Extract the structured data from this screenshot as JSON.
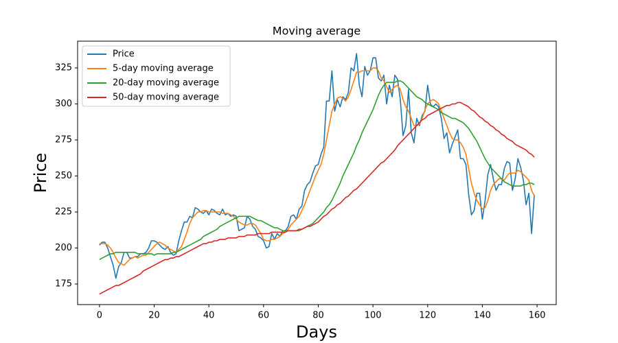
{
  "chart_data": {
    "type": "line",
    "title": "Moving average",
    "x_label": "Days",
    "y_label": "Price",
    "xlim": [
      -8,
      167
    ],
    "ylim": [
      160.7,
      343.6
    ],
    "xticks": [
      0,
      20,
      40,
      60,
      80,
      100,
      120,
      140,
      160
    ],
    "yticks": [
      175,
      200,
      225,
      250,
      275,
      300,
      325
    ],
    "legend": "upper left",
    "grid": false,
    "x": [
      0,
      1,
      2,
      3,
      4,
      5,
      6,
      7,
      8,
      9,
      10,
      11,
      12,
      13,
      14,
      15,
      16,
      17,
      18,
      19,
      20,
      21,
      22,
      23,
      24,
      25,
      26,
      27,
      28,
      29,
      30,
      31,
      32,
      33,
      34,
      35,
      36,
      37,
      38,
      39,
      40,
      41,
      42,
      43,
      44,
      45,
      46,
      47,
      48,
      49,
      50,
      51,
      52,
      53,
      54,
      55,
      56,
      57,
      58,
      59,
      60,
      61,
      62,
      63,
      64,
      65,
      66,
      67,
      68,
      69,
      70,
      71,
      72,
      73,
      74,
      75,
      76,
      77,
      78,
      79,
      80,
      81,
      82,
      83,
      84,
      85,
      86,
      87,
      88,
      89,
      90,
      91,
      92,
      93,
      94,
      95,
      96,
      97,
      98,
      99,
      100,
      101,
      102,
      103,
      104,
      105,
      106,
      107,
      108,
      109,
      110,
      111,
      112,
      113,
      114,
      115,
      116,
      117,
      118,
      119,
      120,
      121,
      122,
      123,
      124,
      125,
      126,
      127,
      128,
      129,
      130,
      131,
      132,
      133,
      134,
      135,
      136,
      137,
      138,
      139,
      140,
      141,
      142,
      143,
      144,
      145,
      146,
      147,
      148,
      149,
      150,
      151,
      152,
      153,
      154,
      155,
      156,
      157,
      158,
      159
    ],
    "series": [
      {
        "name": "Price",
        "color": "#1f77b4",
        "values": [
          202,
          204,
          204,
          200,
          194,
          188,
          179,
          187,
          190,
          197,
          197,
          193,
          193,
          194,
          194,
          196,
          196,
          197,
          200,
          205,
          205,
          204,
          202,
          200,
          199,
          201,
          197,
          195,
          196,
          205,
          212,
          218,
          218,
          222,
          221,
          228,
          227,
          225,
          224,
          226,
          223,
          227,
          226,
          224,
          223,
          227,
          223,
          224,
          222,
          223,
          222,
          212,
          213,
          214,
          222,
          220,
          215,
          213,
          208,
          207,
          205,
          200,
          201,
          210,
          206,
          210,
          208,
          212,
          212,
          215,
          222,
          223,
          220,
          227,
          229,
          240,
          244,
          246,
          252,
          257,
          258,
          265,
          270,
          302,
          302,
          323,
          295,
          303,
          298,
          305,
          303,
          308,
          325,
          323,
          335,
          313,
          305,
          326,
          320,
          323,
          332,
          332,
          318,
          316,
          320,
          300,
          313,
          305,
          320,
          317,
          303,
          278,
          285,
          310,
          280,
          273,
          290,
          285,
          292,
          295,
          313,
          300,
          298,
          300,
          298,
          290,
          276,
          280,
          266,
          272,
          277,
          282,
          262,
          262,
          258,
          237,
          223,
          226,
          238,
          238,
          220,
          233,
          251,
          258,
          248,
          240,
          244,
          244,
          255,
          260,
          259,
          240,
          248,
          262,
          256,
          247,
          230,
          238,
          210,
          237
        ]
      },
      {
        "name": "5-day moving average",
        "color": "#ff7f0e",
        "values": [
          203,
          203,
          203,
          202,
          200,
          197,
          193,
          190,
          189,
          188,
          190,
          192,
          193,
          194,
          193,
          194,
          195,
          195,
          197,
          199,
          201,
          203,
          204,
          203,
          202,
          200,
          199,
          198,
          197,
          199,
          201,
          206,
          211,
          217,
          221,
          223,
          225,
          225,
          226,
          226,
          225,
          225,
          225,
          225,
          225,
          224,
          224,
          224,
          223,
          222,
          220,
          218,
          217,
          216,
          216,
          217,
          217,
          216,
          213,
          210,
          206,
          205,
          205,
          206,
          206,
          207,
          208,
          210,
          211,
          213,
          216,
          218,
          220,
          222,
          226,
          230,
          235,
          240,
          245,
          250,
          254,
          258,
          265,
          275,
          285,
          295,
          300,
          304,
          305,
          304,
          302,
          305,
          310,
          316,
          322,
          322,
          323,
          323,
          323,
          323,
          325,
          325,
          323,
          318,
          316,
          312,
          308,
          310,
          312,
          313,
          310,
          303,
          298,
          295,
          290,
          285,
          285,
          286,
          290,
          296,
          300,
          302,
          303,
          302,
          300,
          295,
          290,
          285,
          280,
          276,
          275,
          275,
          273,
          270,
          265,
          255,
          245,
          238,
          233,
          230,
          227,
          228,
          233,
          240,
          244,
          246,
          248,
          248,
          247,
          250,
          252,
          252,
          252,
          254,
          253,
          251,
          249,
          247,
          240,
          236
        ]
      },
      {
        "name": "20-day moving average",
        "color": "#2ca02c",
        "values": [
          192,
          193,
          194,
          195,
          196,
          196,
          197,
          197,
          197,
          197,
          197,
          197,
          197,
          197,
          196,
          196,
          196,
          196,
          196,
          196,
          195,
          196,
          196,
          196,
          196,
          196,
          196,
          197,
          197,
          198,
          199,
          200,
          201,
          202,
          203,
          204,
          205,
          206,
          208,
          209,
          210,
          211,
          212,
          213,
          215,
          216,
          217,
          218,
          219,
          220,
          221,
          222,
          222,
          222,
          222,
          222,
          221,
          220,
          219,
          219,
          218,
          217,
          216,
          215,
          214,
          214,
          213,
          212,
          212,
          212,
          212,
          212,
          212,
          212,
          213,
          214,
          215,
          216,
          217,
          219,
          221,
          223,
          225,
          228,
          230,
          233,
          237,
          241,
          245,
          250,
          254,
          258,
          262,
          266,
          271,
          275,
          280,
          284,
          288,
          292,
          296,
          301,
          306,
          310,
          313,
          315,
          315,
          315,
          315,
          316,
          316,
          315,
          313,
          311,
          309,
          307,
          305,
          304,
          303,
          301,
          300,
          299,
          298,
          297,
          296,
          294,
          293,
          292,
          291,
          290,
          290,
          289,
          288,
          287,
          285,
          283,
          280,
          277,
          274,
          270,
          266,
          262,
          259,
          256,
          254,
          252,
          250,
          248,
          246,
          245,
          244,
          243,
          243,
          243,
          243,
          244,
          244,
          245,
          245,
          244
        ]
      },
      {
        "name": "50-day moving average",
        "color": "#d62728",
        "values": [
          168,
          169,
          170,
          171,
          172,
          173,
          174,
          174,
          175,
          176,
          177,
          178,
          179,
          180,
          181,
          182,
          184,
          185,
          186,
          187,
          188,
          189,
          190,
          191,
          192,
          192,
          193,
          193,
          194,
          194,
          195,
          196,
          197,
          198,
          199,
          200,
          201,
          202,
          203,
          203,
          204,
          204,
          205,
          205,
          206,
          206,
          206,
          207,
          207,
          207,
          207,
          208,
          208,
          208,
          209,
          209,
          209,
          209,
          210,
          210,
          210,
          210,
          210,
          211,
          211,
          211,
          211,
          211,
          211,
          212,
          212,
          212,
          212,
          213,
          213,
          214,
          215,
          215,
          216,
          217,
          218,
          220,
          222,
          223,
          225,
          227,
          228,
          230,
          231,
          233,
          235,
          236,
          238,
          240,
          241,
          243,
          245,
          247,
          249,
          251,
          253,
          255,
          257,
          259,
          260,
          262,
          264,
          266,
          268,
          271,
          273,
          275,
          277,
          279,
          281,
          283,
          285,
          287,
          289,
          290,
          292,
          293,
          294,
          295,
          296,
          297,
          298,
          299,
          299,
          300,
          300,
          301,
          301,
          300,
          299,
          298,
          296,
          295,
          293,
          291,
          290,
          288,
          287,
          285,
          284,
          282,
          281,
          279,
          278,
          276,
          275,
          274,
          272,
          271,
          270,
          269,
          268,
          266,
          265,
          263
        ]
      }
    ]
  }
}
